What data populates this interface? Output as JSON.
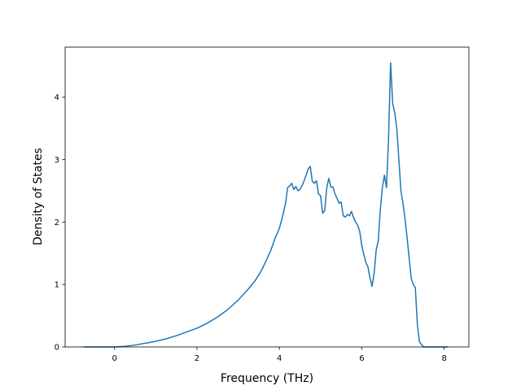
{
  "chart_data": {
    "type": "line",
    "title": "",
    "xlabel": "Frequency (THz)",
    "ylabel": "Density of States",
    "xlim": [
      -1.2,
      8.6
    ],
    "ylim": [
      0,
      4.8
    ],
    "xticks": [
      0,
      2,
      4,
      6,
      8
    ],
    "yticks": [
      0,
      1,
      2,
      3,
      4
    ],
    "grid": false,
    "series": [
      {
        "color": "#1f77b4",
        "x": [
          -0.75,
          -0.5,
          -0.25,
          0.0,
          0.25,
          0.5,
          0.75,
          1.0,
          1.25,
          1.5,
          1.75,
          2.0,
          2.25,
          2.5,
          2.75,
          3.0,
          3.25,
          3.4,
          3.5,
          3.6,
          3.7,
          3.8,
          3.9,
          3.95,
          4.0,
          4.05,
          4.1,
          4.15,
          4.2,
          4.25,
          4.3,
          4.35,
          4.4,
          4.45,
          4.5,
          4.55,
          4.6,
          4.65,
          4.7,
          4.75,
          4.8,
          4.85,
          4.9,
          4.95,
          5.0,
          5.05,
          5.1,
          5.15,
          5.2,
          5.25,
          5.3,
          5.35,
          5.4,
          5.45,
          5.5,
          5.55,
          5.6,
          5.65,
          5.7,
          5.75,
          5.8,
          5.85,
          5.9,
          5.95,
          6.0,
          6.05,
          6.1,
          6.15,
          6.2,
          6.25,
          6.3,
          6.35,
          6.4,
          6.45,
          6.5,
          6.55,
          6.6,
          6.65,
          6.7,
          6.75,
          6.8,
          6.85,
          6.9,
          6.95,
          7.0,
          7.05,
          7.1,
          7.15,
          7.2,
          7.25,
          7.3,
          7.35,
          7.4,
          7.5,
          7.75,
          8.0,
          8.1
        ],
        "y": [
          0.0,
          0.0,
          0.0,
          0.0,
          0.01,
          0.03,
          0.06,
          0.09,
          0.13,
          0.18,
          0.24,
          0.3,
          0.38,
          0.48,
          0.6,
          0.75,
          0.93,
          1.05,
          1.15,
          1.27,
          1.41,
          1.56,
          1.75,
          1.82,
          1.9,
          2.02,
          2.15,
          2.3,
          2.55,
          2.58,
          2.62,
          2.52,
          2.57,
          2.5,
          2.52,
          2.58,
          2.66,
          2.75,
          2.85,
          2.89,
          2.65,
          2.62,
          2.66,
          2.45,
          2.42,
          2.14,
          2.18,
          2.55,
          2.7,
          2.56,
          2.56,
          2.45,
          2.38,
          2.3,
          2.32,
          2.1,
          2.08,
          2.12,
          2.1,
          2.17,
          2.07,
          2.0,
          1.95,
          1.85,
          1.62,
          1.48,
          1.35,
          1.28,
          1.1,
          0.97,
          1.18,
          1.55,
          1.7,
          2.2,
          2.55,
          2.75,
          2.55,
          3.35,
          4.55,
          3.9,
          3.75,
          3.5,
          3.0,
          2.5,
          2.3,
          2.05,
          1.75,
          1.42,
          1.1,
          1.0,
          0.95,
          0.35,
          0.08,
          0.0,
          0.0,
          0.0,
          0.0
        ]
      }
    ]
  }
}
